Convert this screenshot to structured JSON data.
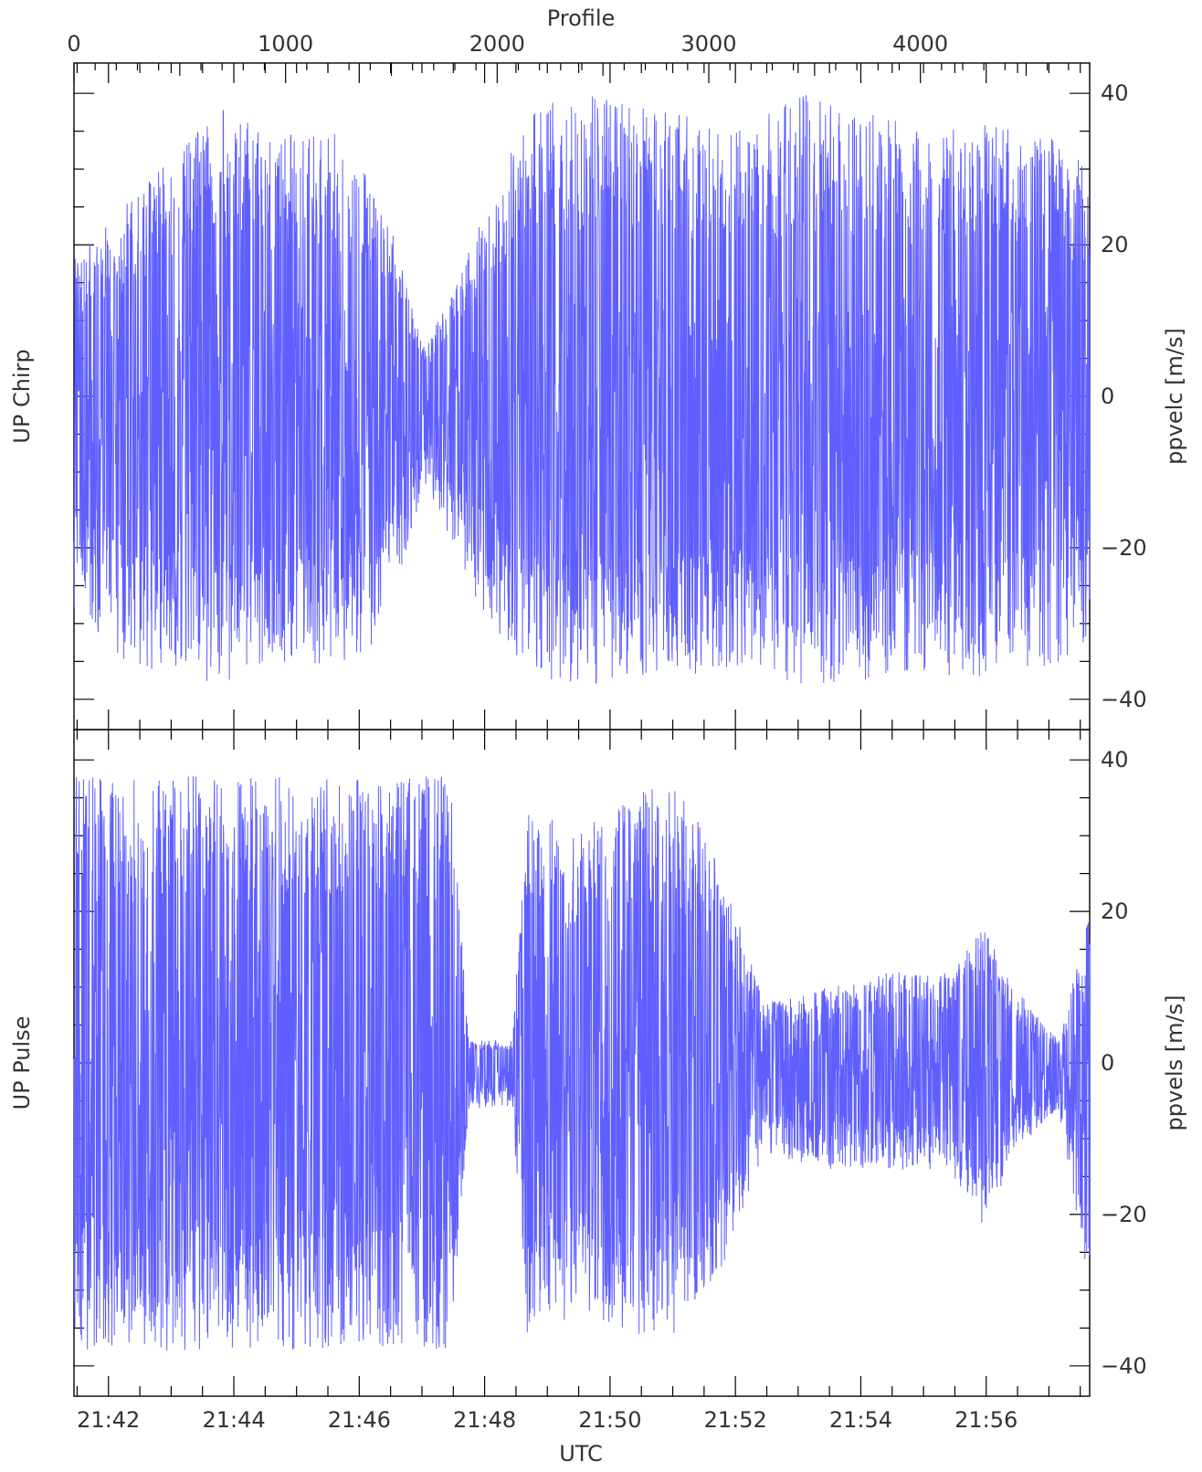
{
  "chart_data": [
    {
      "type": "line",
      "ylabel_left": "UP Chirp",
      "ylabel_right": "ppvelc [m/s]",
      "xlabel_top": "Profile",
      "top_axis": {
        "label": "Profile",
        "ticks": [
          "0",
          "1000",
          "2000",
          "3000",
          "4000"
        ],
        "range": [
          0,
          4800
        ]
      },
      "ylim": [
        -44,
        44
      ],
      "yticks": [
        -40,
        -20,
        0,
        20,
        40
      ],
      "series": [
        {
          "color": "#5f5fff",
          "approx_profile": {
            "description_x": "minutes after 21:41:27",
            "x": [
              0.0,
              0.8,
              1.6,
              2.4,
              3.2,
              4.0,
              4.8,
              5.6,
              6.6,
              7.2,
              7.8,
              8.6,
              9.6,
              10.6,
              11.6,
              12.6,
              13.6,
              14.6,
              15.6,
              16.2
            ],
            "upper": [
              18,
              25,
              33,
              38,
              34,
              36,
              30,
              6,
              25,
              37,
              40,
              40,
              38,
              35,
              40,
              38,
              35,
              36,
              34,
              30
            ],
            "lower": [
              -28,
              -35,
              -37,
              -38,
              -35,
              -37,
              -34,
              -12,
              -30,
              -36,
              -38,
              -38,
              -37,
              -36,
              -38,
              -38,
              -37,
              -37,
              -36,
              -32
            ],
            "center": -5
          }
        }
      ]
    },
    {
      "type": "line",
      "ylabel_left": "UP Pulse",
      "ylabel_right": "ppvels [m/s]",
      "xlabel_bottom": "UTC",
      "bottom_axis": {
        "label": "UTC",
        "ticks": [
          "21:42",
          "21:44",
          "21:46",
          "21:48",
          "21:50",
          "21:52",
          "21:54",
          "21:56"
        ]
      },
      "ylim": [
        -44,
        44
      ],
      "yticks": [
        -40,
        -20,
        0,
        20,
        40
      ],
      "series": [
        {
          "color": "#5f5fff",
          "approx_profile": {
            "description_x": "minutes after 21:41:27",
            "x": [
              0.0,
              1.0,
              2.0,
              3.0,
              4.0,
              5.0,
              6.0,
              6.3,
              7.0,
              7.2,
              8.0,
              9.0,
              9.6,
              10.4,
              11.0,
              12.0,
              13.0,
              14.0,
              14.5,
              15.0,
              15.7,
              16.2
            ],
            "upper": [
              38,
              38,
              38,
              38,
              38,
              38,
              38,
              3,
              3,
              36,
              30,
              36,
              38,
              24,
              8,
              10,
              12,
              12,
              18,
              10,
              3,
              20
            ],
            "lower": [
              -38,
              -38,
              -38,
              -38,
              -38,
              -38,
              -38,
              -6,
              -6,
              -36,
              -34,
              -36,
              -36,
              -26,
              -12,
              -14,
              -14,
              -15,
              -22,
              -12,
              -6,
              -30
            ],
            "center": -2
          }
        }
      ]
    }
  ],
  "labels": {
    "top_title": "Profile",
    "bottom_title": "UTC",
    "panel1_left": "UP Chirp",
    "panel1_right": "ppvelc [m/s]",
    "panel2_left": "UP Pulse",
    "panel2_right": "ppvels [m/s]"
  },
  "colors": {
    "series": "#5f5fff",
    "axes": "#000000",
    "text": "#333333"
  }
}
